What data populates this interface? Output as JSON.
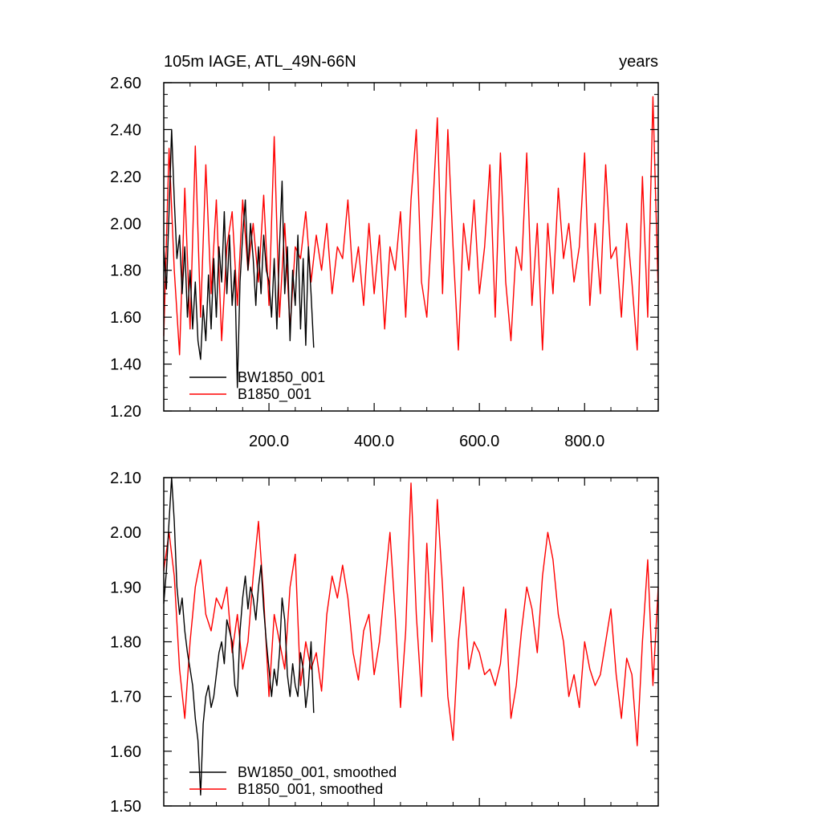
{
  "chart_data": [
    {
      "type": "line",
      "title": "105m IAGE, ATL_49N-66N",
      "units": "years",
      "xlim": [
        0,
        940
      ],
      "ylim": [
        1.2,
        2.6
      ],
      "x_ticks": [
        200,
        400,
        600,
        800
      ],
      "x_tick_labels": [
        "200.0",
        "400.0",
        "600.0",
        "800.0"
      ],
      "y_ticks": [
        1.2,
        1.4,
        1.6,
        1.8,
        2.0,
        2.2,
        2.4,
        2.6
      ],
      "y_tick_labels": [
        "1.20",
        "1.40",
        "1.60",
        "1.80",
        "2.00",
        "2.20",
        "2.40",
        "2.60"
      ],
      "legend": "bottom-left",
      "series": [
        {
          "name": "BW1850_001",
          "color": "#000000",
          "x": [
            0,
            5,
            10,
            15,
            20,
            25,
            30,
            35,
            40,
            45,
            50,
            55,
            60,
            65,
            70,
            75,
            80,
            85,
            90,
            95,
            100,
            105,
            110,
            115,
            120,
            125,
            130,
            135,
            140,
            145,
            150,
            155,
            160,
            165,
            170,
            175,
            180,
            185,
            190,
            195,
            200,
            205,
            210,
            215,
            220,
            225,
            230,
            235,
            240,
            245,
            250,
            255,
            260,
            265,
            270,
            275,
            280,
            285
          ],
          "y": [
            1.9,
            1.72,
            2.05,
            2.4,
            2.1,
            1.85,
            1.95,
            1.7,
            1.9,
            1.6,
            1.8,
            1.55,
            1.75,
            1.5,
            1.42,
            1.65,
            1.5,
            1.78,
            1.55,
            1.85,
            1.6,
            1.9,
            1.75,
            2.05,
            1.7,
            1.95,
            1.65,
            1.8,
            1.3,
            1.75,
            1.95,
            2.1,
            1.8,
            2.0,
            1.85,
            1.65,
            1.9,
            1.7,
            1.95,
            1.8,
            1.75,
            1.6,
            1.85,
            1.55,
            1.9,
            2.18,
            1.7,
            1.9,
            1.5,
            1.8,
            1.65,
            1.95,
            1.55,
            1.85,
            1.48,
            1.9,
            1.7,
            1.47
          ]
        },
        {
          "name": "B1850_001",
          "color": "#ff0000",
          "x": [
            0,
            10,
            20,
            30,
            40,
            50,
            60,
            70,
            80,
            90,
            100,
            110,
            120,
            130,
            140,
            150,
            160,
            170,
            180,
            190,
            200,
            210,
            220,
            230,
            240,
            250,
            260,
            270,
            280,
            290,
            300,
            310,
            320,
            330,
            340,
            350,
            360,
            370,
            380,
            390,
            400,
            410,
            420,
            430,
            440,
            450,
            460,
            470,
            480,
            490,
            500,
            510,
            520,
            530,
            540,
            550,
            560,
            570,
            580,
            590,
            600,
            610,
            620,
            630,
            640,
            650,
            660,
            670,
            680,
            690,
            700,
            710,
            720,
            730,
            740,
            750,
            760,
            770,
            780,
            790,
            800,
            810,
            820,
            830,
            840,
            850,
            860,
            870,
            880,
            890,
            900,
            910,
            920,
            930,
            940
          ],
          "y": [
            1.52,
            2.32,
            1.8,
            1.44,
            2.15,
            1.55,
            2.33,
            1.6,
            2.25,
            1.7,
            2.1,
            1.5,
            1.9,
            2.05,
            1.65,
            2.1,
            1.8,
            2.0,
            1.75,
            2.12,
            1.65,
            2.37,
            1.6,
            2.0,
            1.55,
            1.9,
            1.85,
            2.05,
            1.75,
            1.95,
            1.8,
            2.0,
            1.7,
            1.9,
            1.85,
            2.1,
            1.75,
            1.9,
            1.65,
            2.0,
            1.7,
            1.95,
            1.55,
            1.9,
            1.8,
            2.05,
            1.6,
            2.1,
            2.4,
            1.75,
            1.6,
            2.0,
            2.45,
            1.7,
            2.4,
            1.9,
            1.46,
            2.0,
            1.8,
            2.1,
            1.7,
            1.9,
            2.25,
            1.6,
            2.3,
            1.75,
            1.5,
            1.9,
            1.8,
            2.3,
            1.65,
            2.0,
            1.46,
            2.0,
            1.7,
            2.15,
            1.85,
            2.0,
            1.75,
            1.9,
            2.3,
            1.65,
            2.0,
            1.7,
            2.25,
            1.85,
            1.9,
            1.6,
            2.0,
            1.75,
            1.46,
            2.2,
            1.6,
            2.54,
            1.7
          ]
        }
      ]
    },
    {
      "type": "line",
      "xlim": [
        0,
        940
      ],
      "ylim": [
        1.5,
        2.1
      ],
      "y_ticks": [
        1.5,
        1.6,
        1.7,
        1.8,
        1.9,
        2.0,
        2.1
      ],
      "y_tick_labels": [
        "1.50",
        "1.60",
        "1.70",
        "1.80",
        "1.90",
        "2.00",
        "2.10"
      ],
      "legend": "bottom-left",
      "series": [
        {
          "name": "BW1850_001, smoothed",
          "color": "#000000",
          "x": [
            0,
            5,
            10,
            15,
            20,
            25,
            30,
            35,
            40,
            45,
            50,
            55,
            60,
            65,
            70,
            75,
            80,
            85,
            90,
            95,
            100,
            105,
            110,
            115,
            120,
            125,
            130,
            135,
            140,
            145,
            150,
            155,
            160,
            165,
            170,
            175,
            180,
            185,
            190,
            195,
            200,
            205,
            210,
            215,
            220,
            225,
            230,
            235,
            240,
            245,
            250,
            255,
            260,
            265,
            270,
            275,
            280,
            285
          ],
          "y": [
            1.87,
            1.93,
            2.02,
            2.1,
            2.02,
            1.9,
            1.85,
            1.88,
            1.82,
            1.78,
            1.75,
            1.72,
            1.66,
            1.62,
            1.52,
            1.65,
            1.7,
            1.72,
            1.68,
            1.7,
            1.74,
            1.78,
            1.8,
            1.76,
            1.84,
            1.82,
            1.8,
            1.72,
            1.7,
            1.82,
            1.88,
            1.92,
            1.86,
            1.9,
            1.88,
            1.84,
            1.9,
            1.94,
            1.86,
            1.8,
            1.75,
            1.7,
            1.75,
            1.72,
            1.78,
            1.88,
            1.84,
            1.74,
            1.7,
            1.76,
            1.72,
            1.7,
            1.78,
            1.75,
            1.68,
            1.72,
            1.8,
            1.67
          ]
        },
        {
          "name": "B1850_001, smoothed",
          "color": "#ff0000",
          "x": [
            0,
            10,
            20,
            30,
            40,
            50,
            60,
            70,
            80,
            90,
            100,
            110,
            120,
            130,
            140,
            150,
            160,
            170,
            180,
            190,
            200,
            210,
            220,
            230,
            240,
            250,
            260,
            270,
            280,
            290,
            300,
            310,
            320,
            330,
            340,
            350,
            360,
            370,
            380,
            390,
            400,
            410,
            420,
            430,
            440,
            450,
            460,
            470,
            480,
            490,
            500,
            510,
            520,
            530,
            540,
            550,
            560,
            570,
            580,
            590,
            600,
            610,
            620,
            630,
            640,
            650,
            660,
            670,
            680,
            690,
            700,
            710,
            720,
            730,
            740,
            750,
            760,
            770,
            780,
            790,
            800,
            810,
            820,
            830,
            840,
            850,
            860,
            870,
            880,
            890,
            900,
            910,
            920,
            930,
            940
          ],
          "y": [
            1.93,
            2.0,
            1.92,
            1.75,
            1.66,
            1.8,
            1.9,
            1.95,
            1.85,
            1.82,
            1.88,
            1.86,
            1.9,
            1.78,
            1.85,
            1.75,
            1.8,
            1.92,
            2.02,
            1.88,
            1.7,
            1.85,
            1.8,
            1.75,
            1.9,
            1.96,
            1.72,
            1.8,
            1.75,
            1.78,
            1.71,
            1.85,
            1.92,
            1.88,
            1.94,
            1.88,
            1.78,
            1.73,
            1.82,
            1.85,
            1.74,
            1.8,
            1.9,
            2.0,
            1.85,
            1.68,
            1.82,
            2.09,
            1.85,
            1.7,
            1.98,
            1.8,
            2.06,
            1.9,
            1.7,
            1.62,
            1.8,
            1.9,
            1.75,
            1.8,
            1.78,
            1.74,
            1.75,
            1.72,
            1.76,
            1.86,
            1.66,
            1.72,
            1.82,
            1.9,
            1.86,
            1.78,
            1.92,
            2.0,
            1.95,
            1.85,
            1.8,
            1.7,
            1.74,
            1.68,
            1.8,
            1.75,
            1.72,
            1.74,
            1.8,
            1.86,
            1.74,
            1.66,
            1.77,
            1.74,
            1.61,
            1.8,
            1.95,
            1.72,
            1.9
          ]
        }
      ]
    }
  ]
}
